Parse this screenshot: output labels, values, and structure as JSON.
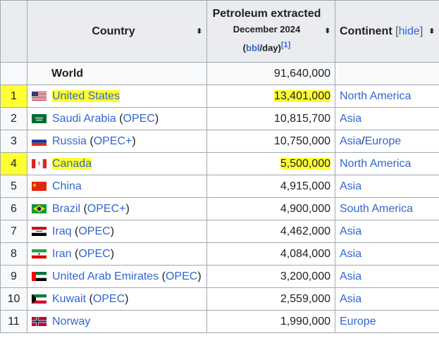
{
  "header": {
    "country_label": "Country",
    "petroleum_title": "Petroleum extracted",
    "petroleum_date": "December 2024",
    "unit_open": "(",
    "unit_link": "bbl",
    "unit_rest": "/day)",
    "unit_ref": "[1]",
    "continent_label": "Continent",
    "hide_open": "[",
    "hide_link": "hide",
    "hide_close": "]",
    "sort_glyph": "⬍"
  },
  "world": {
    "label": "World",
    "value": "91,640,000"
  },
  "rows": [
    {
      "rank": "1",
      "country": "United States",
      "org": "",
      "value": "13,401,000",
      "continent": "North America",
      "flag": "us-flag-icon",
      "highlight": true
    },
    {
      "rank": "2",
      "country": "Saudi Arabia",
      "org": "OPEC",
      "value": "10,815,700",
      "continent": "Asia",
      "flag": "saudi-flag-icon",
      "highlight": false
    },
    {
      "rank": "3",
      "country": "Russia",
      "org": "OPEC+",
      "value": "10,750,000",
      "continent": "Asia/Europe",
      "flag": "russia-flag-icon",
      "highlight": false
    },
    {
      "rank": "4",
      "country": "Canada",
      "org": "",
      "value": "5,500,000",
      "continent": "North America",
      "flag": "canada-flag-icon",
      "highlight": true
    },
    {
      "rank": "5",
      "country": "China",
      "org": "",
      "value": "4,915,000",
      "continent": "Asia",
      "flag": "china-flag-icon",
      "highlight": false
    },
    {
      "rank": "6",
      "country": "Brazil",
      "org": "OPEC+",
      "value": "4,900,000",
      "continent": "South America",
      "flag": "brazil-flag-icon",
      "highlight": false
    },
    {
      "rank": "7",
      "country": "Iraq",
      "org": "OPEC",
      "value": "4,462,000",
      "continent": "Asia",
      "flag": "iraq-flag-icon",
      "highlight": false
    },
    {
      "rank": "8",
      "country": "Iran",
      "org": "OPEC",
      "value": "4,084,000",
      "continent": "Asia",
      "flag": "iran-flag-icon",
      "highlight": false
    },
    {
      "rank": "9",
      "country": "United Arab Emirates",
      "org": "OPEC",
      "value": "3,200,000",
      "continent": "Asia",
      "flag": "uae-flag-icon",
      "highlight": false
    },
    {
      "rank": "10",
      "country": "Kuwait",
      "org": "OPEC",
      "value": "2,559,000",
      "continent": "Asia",
      "flag": "kuwait-flag-icon",
      "highlight": false
    },
    {
      "rank": "11",
      "country": "Norway",
      "org": "",
      "value": "1,990,000",
      "continent": "Europe",
      "flag": "norway-flag-icon",
      "highlight": false
    }
  ],
  "colors": {
    "link": "#3366cc",
    "highlight": "#ffff33",
    "header_bg": "#eaecf0",
    "border": "#a2a9b1"
  }
}
